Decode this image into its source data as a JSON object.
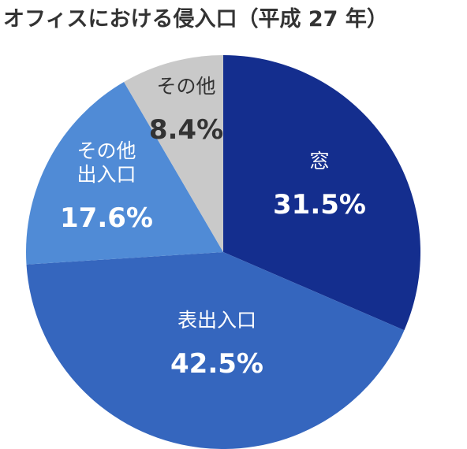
{
  "chart_data": {
    "type": "pie",
    "title": "オフィスにおける侵入口（平成 27 年）",
    "slices": [
      {
        "label_lines": [
          "窓"
        ],
        "value": 31.5,
        "value_label": "31.5%",
        "color": "#142e8e",
        "text_color": "#ffffff"
      },
      {
        "label_lines": [
          "表出入口"
        ],
        "value": 42.5,
        "value_label": "42.5%",
        "color": "#3566be",
        "text_color": "#ffffff"
      },
      {
        "label_lines": [
          "その他",
          "出入口"
        ],
        "value": 17.6,
        "value_label": "17.6%",
        "color": "#508bd6",
        "text_color": "#ffffff"
      },
      {
        "label_lines": [
          "その他"
        ],
        "value": 8.4,
        "value_label": "8.4%",
        "color": "#c9c9c9",
        "text_color": "#333333"
      }
    ]
  }
}
